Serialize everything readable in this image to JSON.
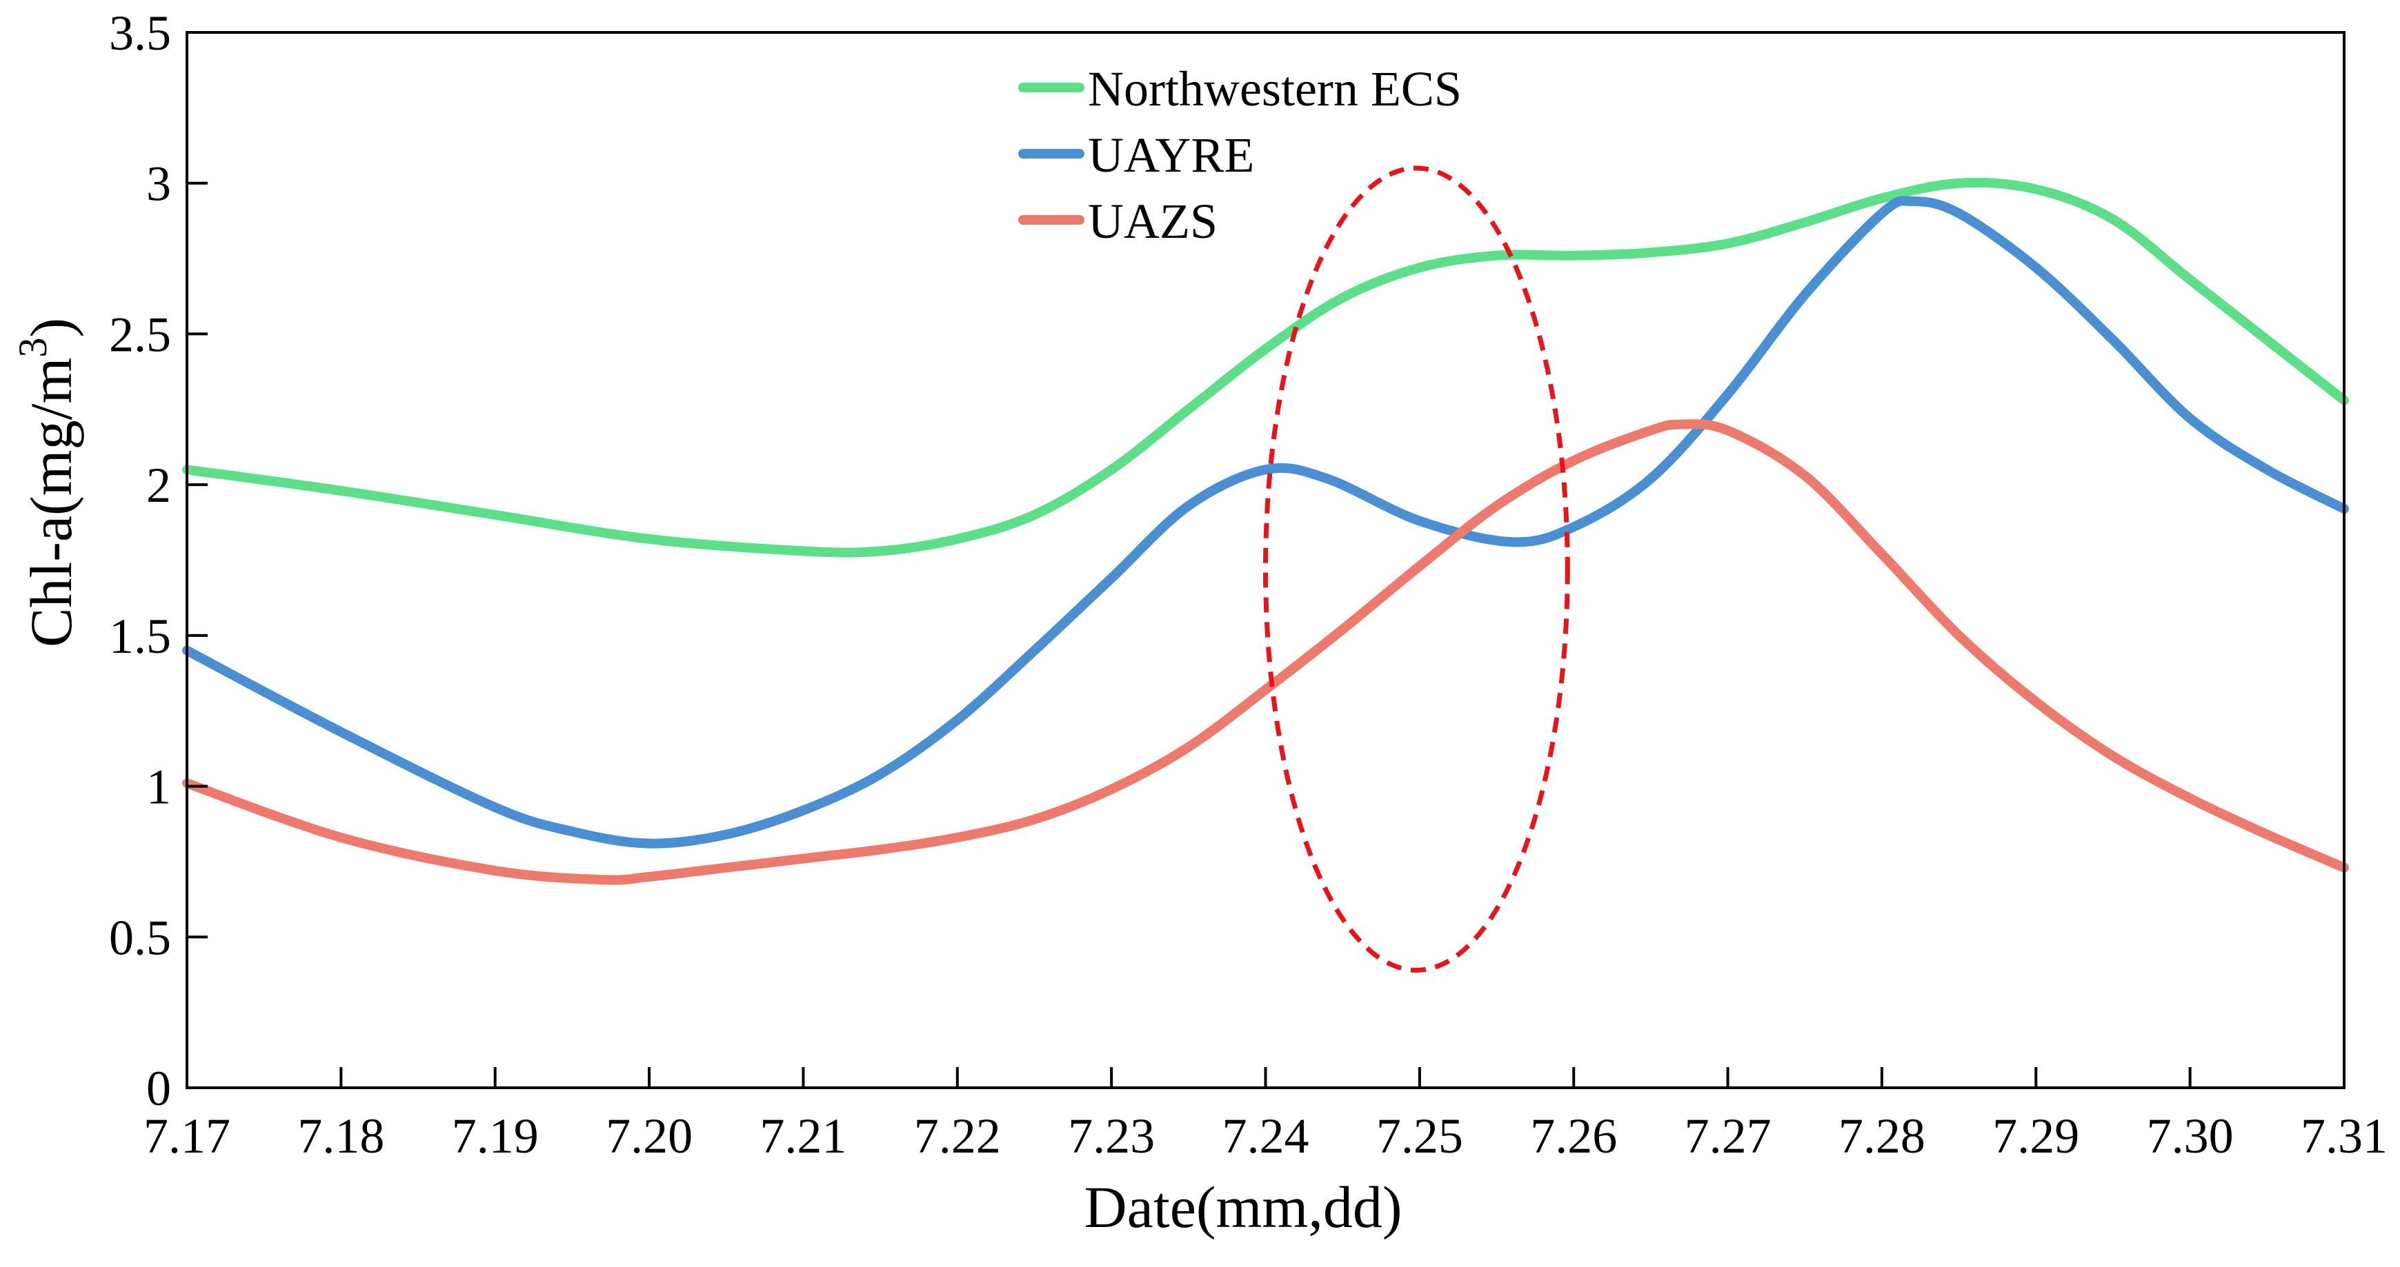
{
  "chart_data": {
    "type": "line",
    "title": "",
    "xlabel": "Date(mm,dd)",
    "ylabel_main": "Chl-a(mg/m",
    "ylabel_sup": "3",
    "ylabel_close": ")",
    "x_ticks": [
      17,
      18,
      19,
      20,
      21,
      22,
      23,
      24,
      25,
      26,
      27,
      28,
      29,
      30,
      31
    ],
    "x_tick_labels": [
      "7.17",
      "7.18",
      "7.19",
      "7.20",
      "7.21",
      "7.22",
      "7.23",
      "7.24",
      "7.25",
      "7.26",
      "7.27",
      "7.28",
      "7.29",
      "7.30",
      "7.31"
    ],
    "xlim": [
      17,
      31
    ],
    "ylim": [
      0,
      3.5
    ],
    "y_ticks": [
      0,
      0.5,
      1,
      1.5,
      2,
      2.5,
      3,
      3.5
    ],
    "y_tick_labels": [
      "0",
      "0.5",
      "1",
      "1.5",
      "2",
      "2.5",
      "3",
      "3.5"
    ],
    "grid": false,
    "legend_position": "top-center",
    "series": [
      {
        "name": "Northwestern ECS",
        "color": "#5ddf8a",
        "x": [
          17,
          18,
          19,
          20,
          21,
          21.5,
          22,
          22.5,
          23,
          23.5,
          24,
          24.5,
          25,
          25.5,
          26,
          26.5,
          27,
          27.5,
          28,
          28.5,
          29,
          29.5,
          30,
          30.5,
          31
        ],
        "y": [
          2.05,
          1.98,
          1.9,
          1.82,
          1.78,
          1.78,
          1.82,
          1.9,
          2.05,
          2.25,
          2.45,
          2.62,
          2.72,
          2.76,
          2.76,
          2.77,
          2.8,
          2.87,
          2.95,
          3.0,
          2.98,
          2.88,
          2.68,
          2.48,
          2.28
        ]
      },
      {
        "name": "UAYRE",
        "color": "#4a8fd1",
        "x": [
          17,
          18,
          19,
          19.5,
          20,
          20.5,
          21,
          21.5,
          22,
          22.5,
          23,
          23.5,
          24,
          24.4,
          25,
          25.6,
          26,
          26.5,
          27,
          27.5,
          28,
          28.2,
          28.5,
          29,
          29.5,
          30,
          30.5,
          31
        ],
        "y": [
          1.45,
          1.18,
          0.93,
          0.85,
          0.81,
          0.84,
          0.92,
          1.04,
          1.22,
          1.45,
          1.69,
          1.93,
          2.05,
          2.02,
          1.88,
          1.81,
          1.86,
          2.02,
          2.3,
          2.63,
          2.9,
          2.94,
          2.9,
          2.72,
          2.48,
          2.22,
          2.05,
          1.92
        ]
      },
      {
        "name": "UAZS",
        "color": "#ee7a6d",
        "x": [
          17,
          18,
          19,
          19.7,
          20,
          20.5,
          21,
          21.5,
          22,
          22.5,
          23,
          23.5,
          24,
          24.5,
          25,
          25.5,
          26,
          26.5,
          26.7,
          27,
          27.5,
          28,
          28.5,
          29,
          29.5,
          30,
          30.5,
          31
        ],
        "y": [
          1.01,
          0.83,
          0.72,
          0.69,
          0.7,
          0.73,
          0.76,
          0.79,
          0.83,
          0.89,
          0.99,
          1.13,
          1.32,
          1.52,
          1.73,
          1.93,
          2.08,
          2.18,
          2.2,
          2.18,
          2.03,
          1.77,
          1.5,
          1.28,
          1.1,
          0.96,
          0.84,
          0.73
        ]
      }
    ],
    "annotation": {
      "type": "dashed-ellipse",
      "color": "#e8141a",
      "center_x": 24.98,
      "center_y": 1.72,
      "radius_x": 0.98,
      "radius_y": 1.33
    }
  }
}
